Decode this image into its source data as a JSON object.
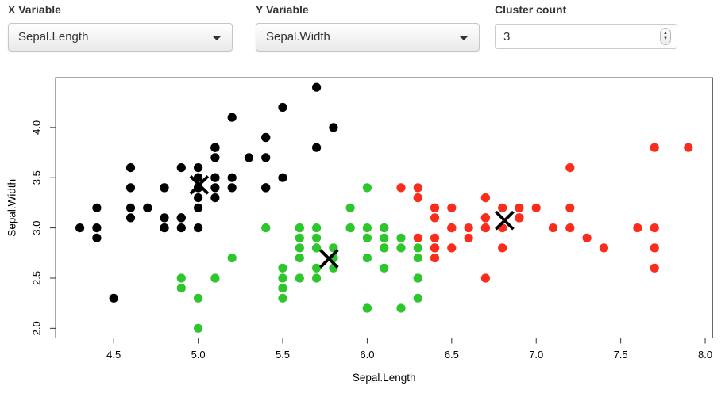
{
  "controls": {
    "x_variable": {
      "label": "X Variable",
      "value": "Sepal.Length"
    },
    "y_variable": {
      "label": "Y Variable",
      "value": "Sepal.Width"
    },
    "cluster_count": {
      "label": "Cluster count",
      "value": "3"
    }
  },
  "chart_data": {
    "type": "scatter",
    "title": "",
    "xlabel": "Sepal.Length",
    "ylabel": "Sepal.Width",
    "xlim": [
      4.156,
      8.044
    ],
    "ylim": [
      1.904,
      4.496
    ],
    "x_ticks": [
      4.5,
      5.0,
      5.5,
      6.0,
      6.5,
      7.0,
      7.5,
      8.0
    ],
    "y_ticks": [
      2.0,
      2.5,
      3.0,
      3.5,
      4.0
    ],
    "grid": false,
    "legend": "none",
    "series": [
      {
        "name": "cluster-1-black",
        "color": "#000000",
        "points": [
          [
            5.1,
            3.5
          ],
          [
            4.9,
            3.0
          ],
          [
            4.7,
            3.2
          ],
          [
            4.6,
            3.1
          ],
          [
            5.0,
            3.6
          ],
          [
            5.4,
            3.9
          ],
          [
            4.6,
            3.4
          ],
          [
            5.0,
            3.4
          ],
          [
            4.4,
            2.9
          ],
          [
            4.9,
            3.1
          ],
          [
            5.4,
            3.7
          ],
          [
            4.8,
            3.4
          ],
          [
            4.8,
            3.0
          ],
          [
            4.3,
            3.0
          ],
          [
            5.8,
            4.0
          ],
          [
            5.7,
            4.4
          ],
          [
            5.4,
            3.9
          ],
          [
            5.1,
            3.5
          ],
          [
            5.7,
            3.8
          ],
          [
            5.1,
            3.8
          ],
          [
            5.4,
            3.4
          ],
          [
            5.1,
            3.7
          ],
          [
            4.6,
            3.6
          ],
          [
            5.1,
            3.3
          ],
          [
            4.8,
            3.4
          ],
          [
            5.0,
            3.0
          ],
          [
            5.0,
            3.4
          ],
          [
            5.2,
            3.5
          ],
          [
            5.2,
            3.4
          ],
          [
            4.7,
            3.2
          ],
          [
            4.8,
            3.1
          ],
          [
            5.4,
            3.4
          ],
          [
            5.2,
            4.1
          ],
          [
            5.5,
            4.2
          ],
          [
            4.9,
            3.1
          ],
          [
            5.0,
            3.2
          ],
          [
            5.5,
            3.5
          ],
          [
            4.9,
            3.6
          ],
          [
            4.4,
            3.0
          ],
          [
            5.1,
            3.4
          ],
          [
            5.0,
            3.5
          ],
          [
            4.5,
            2.3
          ],
          [
            4.4,
            3.2
          ],
          [
            5.0,
            3.5
          ],
          [
            5.1,
            3.8
          ],
          [
            4.8,
            3.0
          ],
          [
            5.1,
            3.8
          ],
          [
            4.6,
            3.2
          ],
          [
            5.3,
            3.7
          ],
          [
            5.0,
            3.3
          ]
        ]
      },
      {
        "name": "cluster-2-green",
        "color": "#2DC62D",
        "points": [
          [
            5.5,
            2.3
          ],
          [
            5.7,
            2.8
          ],
          [
            4.9,
            2.4
          ],
          [
            5.2,
            2.7
          ],
          [
            5.0,
            2.0
          ],
          [
            5.9,
            3.0
          ],
          [
            6.0,
            2.2
          ],
          [
            6.1,
            2.9
          ],
          [
            5.6,
            2.9
          ],
          [
            5.6,
            3.0
          ],
          [
            5.8,
            2.7
          ],
          [
            6.2,
            2.2
          ],
          [
            5.6,
            2.5
          ],
          [
            5.9,
            3.2
          ],
          [
            6.1,
            2.8
          ],
          [
            6.3,
            2.5
          ],
          [
            6.1,
            2.8
          ],
          [
            6.0,
            2.9
          ],
          [
            5.7,
            2.6
          ],
          [
            5.5,
            2.4
          ],
          [
            5.5,
            2.4
          ],
          [
            5.8,
            2.7
          ],
          [
            6.0,
            2.7
          ],
          [
            5.4,
            3.0
          ],
          [
            6.0,
            3.4
          ],
          [
            6.3,
            2.3
          ],
          [
            5.6,
            3.0
          ],
          [
            5.5,
            2.5
          ],
          [
            5.5,
            2.6
          ],
          [
            6.1,
            3.0
          ],
          [
            5.8,
            2.6
          ],
          [
            5.0,
            2.3
          ],
          [
            5.6,
            2.7
          ],
          [
            5.7,
            3.0
          ],
          [
            5.7,
            2.9
          ],
          [
            6.2,
            2.9
          ],
          [
            5.1,
            2.5
          ],
          [
            5.7,
            2.8
          ],
          [
            5.8,
            2.7
          ],
          [
            4.9,
            2.5
          ],
          [
            5.7,
            2.5
          ],
          [
            5.8,
            2.8
          ],
          [
            6.0,
            2.2
          ],
          [
            5.6,
            2.8
          ],
          [
            6.3,
            2.7
          ],
          [
            6.2,
            2.8
          ],
          [
            6.1,
            3.0
          ],
          [
            6.3,
            2.8
          ],
          [
            6.1,
            2.6
          ],
          [
            6.0,
            3.0
          ],
          [
            5.8,
            2.7
          ],
          [
            6.3,
            2.5
          ],
          [
            5.9,
            3.0
          ]
        ]
      },
      {
        "name": "cluster-3-red",
        "color": "#FA2C1C",
        "points": [
          [
            7.0,
            3.2
          ],
          [
            6.4,
            3.2
          ],
          [
            6.9,
            3.1
          ],
          [
            6.5,
            2.8
          ],
          [
            6.3,
            3.3
          ],
          [
            6.6,
            2.9
          ],
          [
            6.7,
            3.1
          ],
          [
            6.4,
            2.9
          ],
          [
            6.6,
            3.0
          ],
          [
            6.8,
            2.8
          ],
          [
            6.7,
            3.0
          ],
          [
            6.7,
            3.1
          ],
          [
            6.3,
            3.3
          ],
          [
            7.1,
            3.0
          ],
          [
            6.3,
            2.9
          ],
          [
            6.5,
            3.0
          ],
          [
            7.6,
            3.0
          ],
          [
            7.3,
            2.9
          ],
          [
            6.7,
            2.5
          ],
          [
            7.2,
            3.6
          ],
          [
            6.5,
            3.2
          ],
          [
            6.4,
            2.7
          ],
          [
            6.8,
            3.0
          ],
          [
            6.4,
            3.2
          ],
          [
            6.5,
            3.0
          ],
          [
            7.7,
            3.8
          ],
          [
            7.7,
            2.6
          ],
          [
            6.9,
            3.2
          ],
          [
            7.7,
            2.8
          ],
          [
            6.7,
            3.3
          ],
          [
            7.2,
            3.2
          ],
          [
            6.4,
            2.8
          ],
          [
            7.2,
            3.0
          ],
          [
            7.4,
            2.8
          ],
          [
            7.9,
            3.8
          ],
          [
            6.4,
            2.8
          ],
          [
            7.7,
            3.0
          ],
          [
            6.3,
            3.4
          ],
          [
            6.4,
            3.1
          ],
          [
            6.9,
            3.1
          ],
          [
            6.7,
            3.1
          ],
          [
            6.9,
            3.1
          ],
          [
            6.8,
            3.2
          ],
          [
            6.7,
            3.3
          ],
          [
            6.7,
            3.0
          ],
          [
            6.5,
            3.0
          ],
          [
            6.2,
            3.4
          ]
        ]
      }
    ],
    "centers": {
      "marker": "x",
      "color": "#000000",
      "points": [
        [
          5.006,
          3.428
        ],
        [
          5.774,
          2.693
        ],
        [
          6.813,
          3.074
        ]
      ]
    }
  }
}
